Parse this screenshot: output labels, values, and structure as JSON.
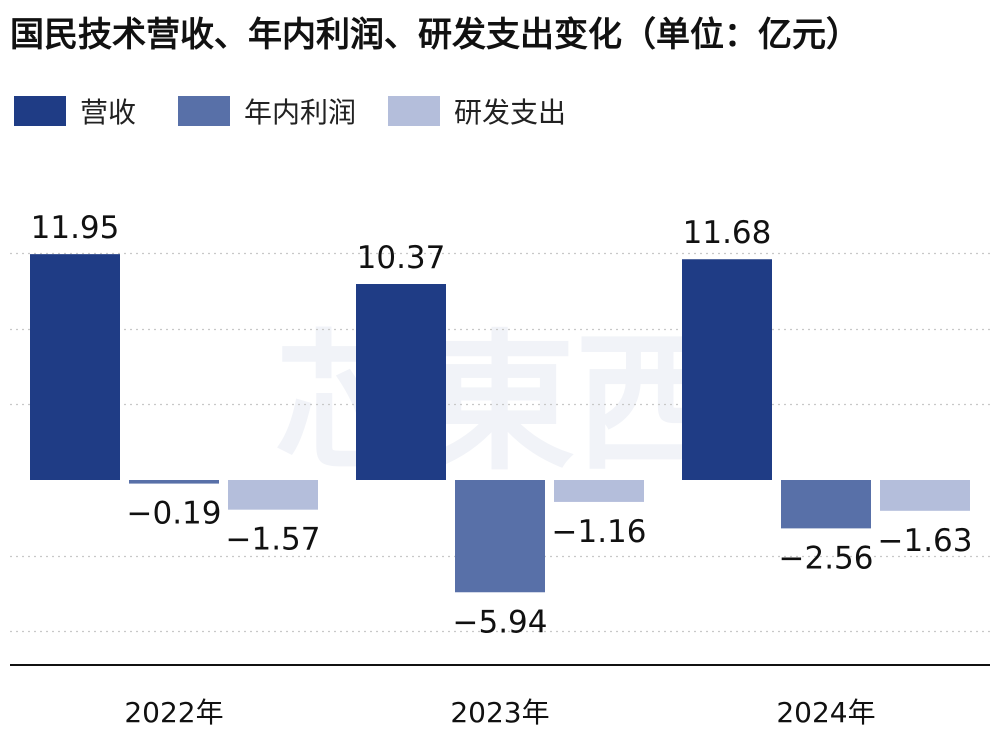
{
  "chart_data": {
    "type": "bar",
    "title": "国民技术营收、年内利润、研发支出变化（单位：亿元）",
    "categories": [
      "2022年",
      "2023年",
      "2024年"
    ],
    "series": [
      {
        "name": "营收",
        "values": [
          11.95,
          10.37,
          11.68
        ],
        "color": "#1f3c85"
      },
      {
        "name": "年内利润",
        "values": [
          -0.19,
          -5.94,
          -2.56
        ],
        "color": "#5870a8"
      },
      {
        "name": "研发支出",
        "values": [
          -1.57,
          -1.16,
          -1.63
        ],
        "color": "#b4bedb"
      }
    ],
    "value_labels": [
      [
        "11.95",
        "10.37",
        "11.68"
      ],
      [
        "−0.19",
        "−5.94",
        "−2.56"
      ],
      [
        "−1.57",
        "−1.16",
        "−1.63"
      ]
    ],
    "ylim": [
      -10,
      16
    ],
    "grid": true,
    "legend_position": "top-left"
  }
}
